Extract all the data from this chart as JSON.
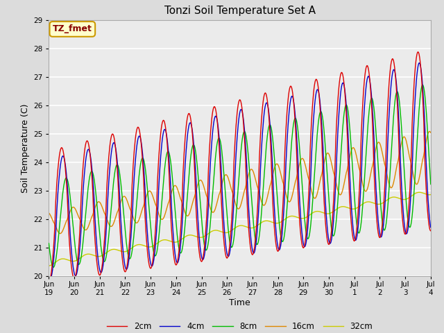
{
  "title": "Tonzi Soil Temperature Set A",
  "xlabel": "Time",
  "ylabel": "Soil Temperature (C)",
  "annotation": "TZ_fmet",
  "ylim": [
    20.0,
    29.0
  ],
  "yticks": [
    20.0,
    21.0,
    22.0,
    23.0,
    24.0,
    25.0,
    26.0,
    27.0,
    28.0,
    29.0
  ],
  "xtick_labels": [
    "Jun\n19",
    "Jun\n20",
    "Jun\n21",
    "Jun\n22",
    "Jun\n23",
    "Jun\n24",
    "Jun\n25",
    "Jun\n26",
    "Jun\n27",
    "Jun\n28",
    "Jun\n29",
    "Jun\n30",
    "Jul\n1",
    "Jul\n2",
    "Jul\n3",
    "Jul\n4"
  ],
  "series_colors": [
    "#dd0000",
    "#0000cc",
    "#00bb00",
    "#dd8800",
    "#cccc00"
  ],
  "series_labels": [
    "2cm",
    "4cm",
    "8cm",
    "16cm",
    "32cm"
  ],
  "background_color": "#dcdcdc",
  "plot_bg_color": "#ebebeb",
  "grid_color": "#ffffff",
  "annotation_bg": "#ffffcc",
  "annotation_border": "#cc9900",
  "annotation_text_color": "#880000",
  "title_fontsize": 11,
  "axis_label_fontsize": 9,
  "tick_fontsize": 7.5,
  "legend_fontsize": 8.5
}
